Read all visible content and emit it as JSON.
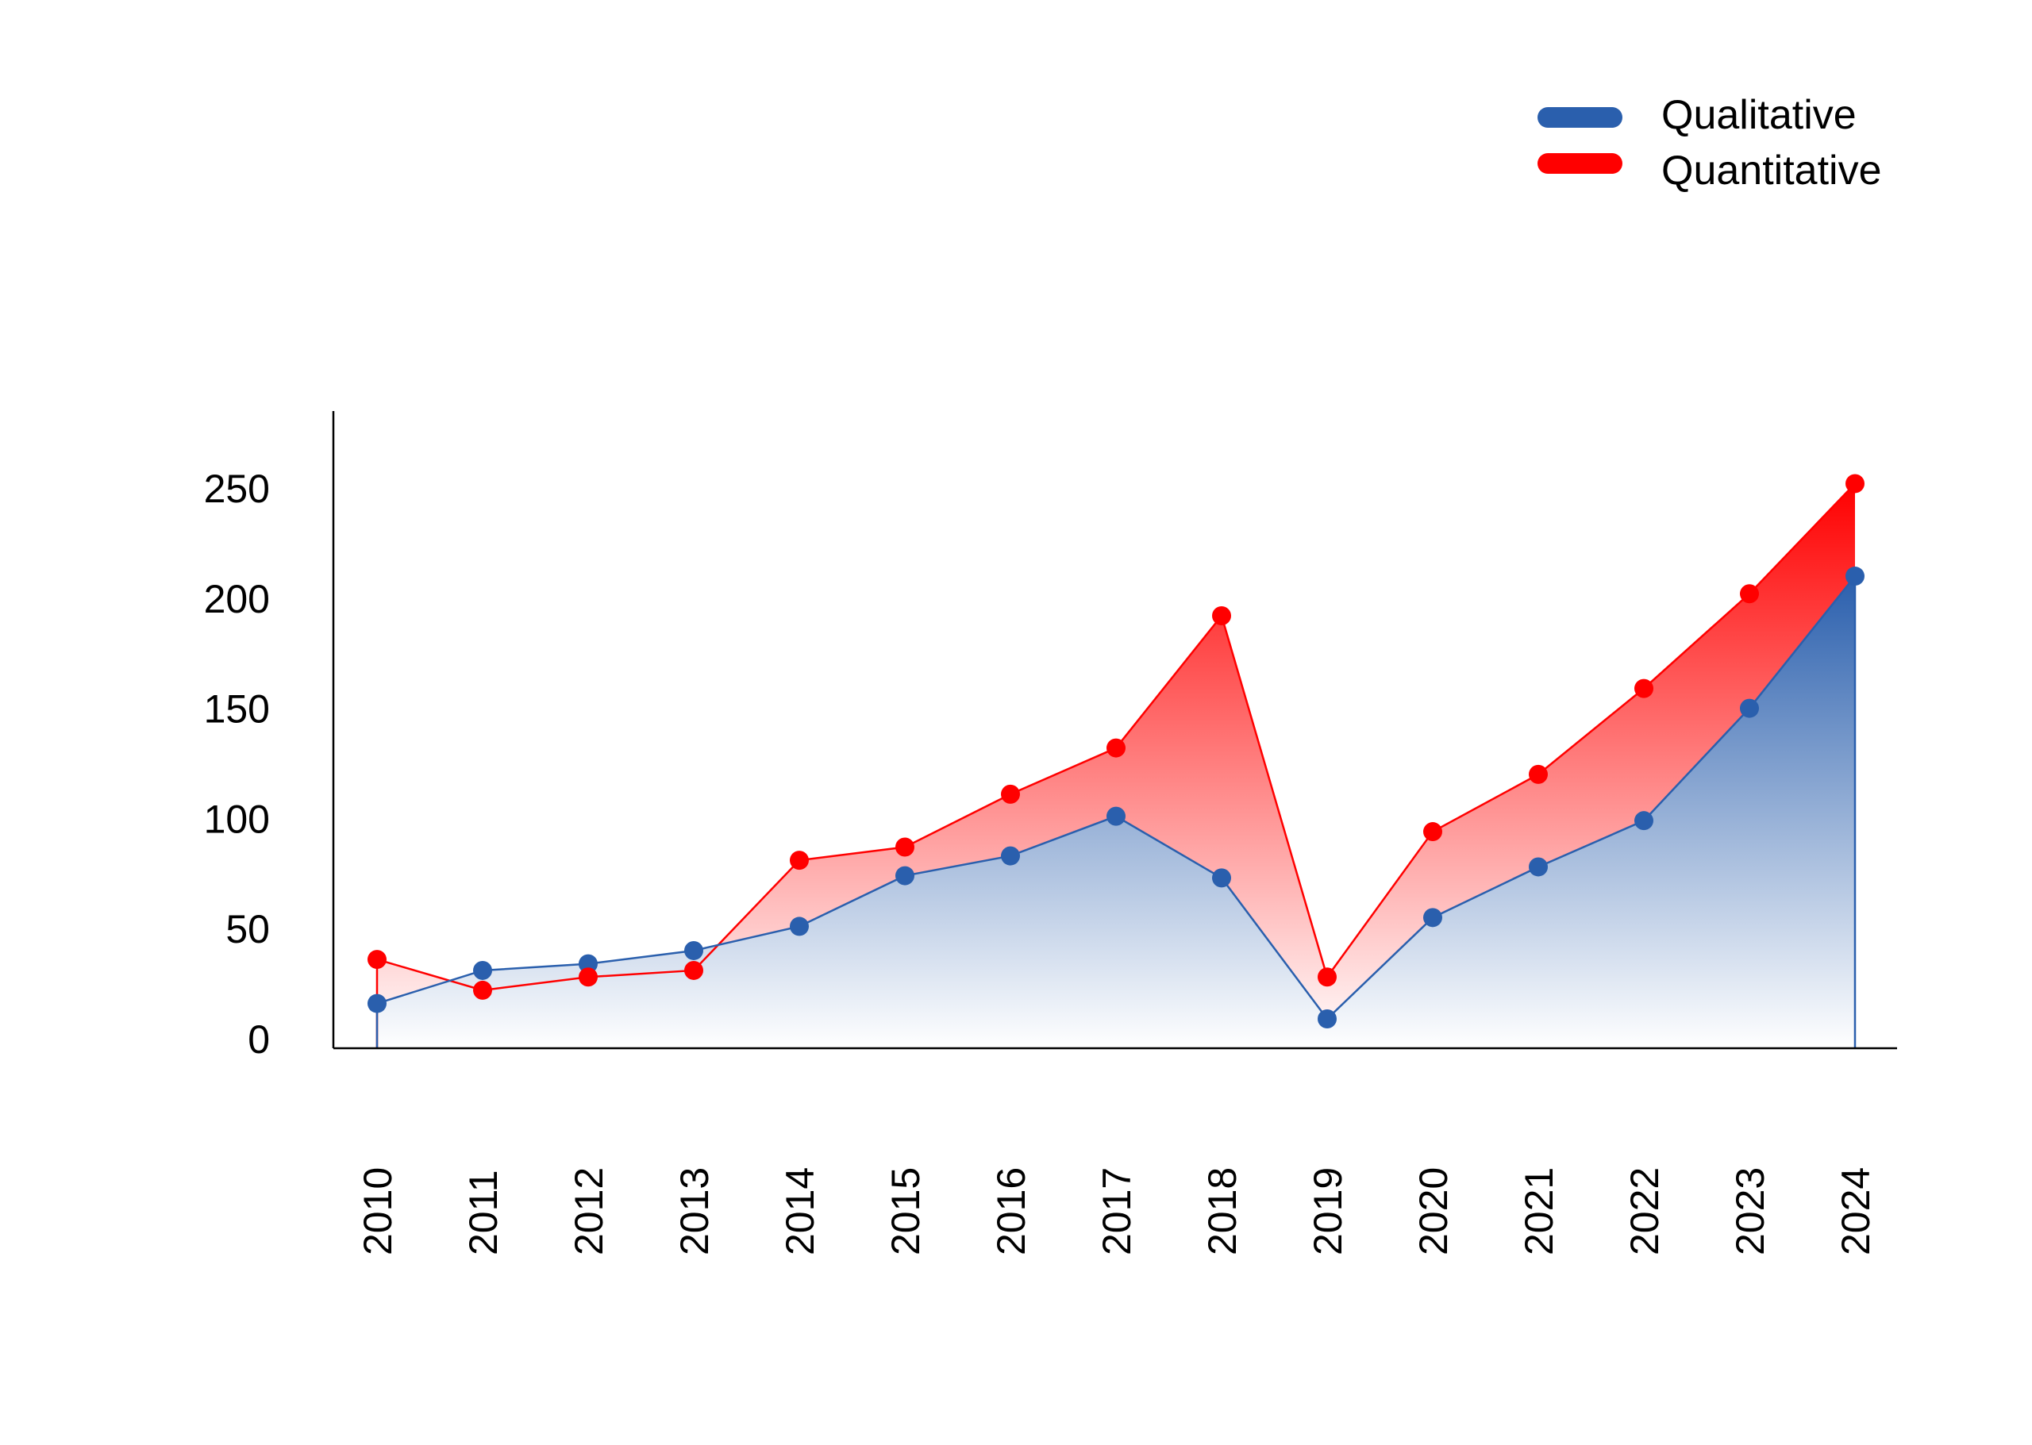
{
  "chart_data": {
    "type": "area",
    "title": "",
    "xlabel": "",
    "ylabel": "",
    "x": [
      "2010",
      "2011",
      "2012",
      "2013",
      "2014",
      "2015",
      "2016",
      "2017",
      "2018",
      "2019",
      "2020",
      "2021",
      "2022",
      "2023",
      "2024"
    ],
    "yticks": [
      "0",
      "50",
      "100",
      "150",
      "200",
      "250"
    ],
    "ylim": [
      -4,
      286
    ],
    "grid": false,
    "legend_position": "top-right",
    "series": [
      {
        "name": "Qualitative",
        "color": "#2a5fad",
        "values": [
          16,
          31,
          34,
          40,
          51,
          74,
          83,
          101,
          73,
          9,
          55,
          78,
          99,
          150,
          210
        ]
      },
      {
        "name": "Quantitative",
        "color": "#ff0000",
        "values": [
          36,
          22,
          28,
          31,
          81,
          87,
          111,
          132,
          192,
          28,
          94,
          120,
          159,
          202,
          252
        ]
      }
    ]
  }
}
